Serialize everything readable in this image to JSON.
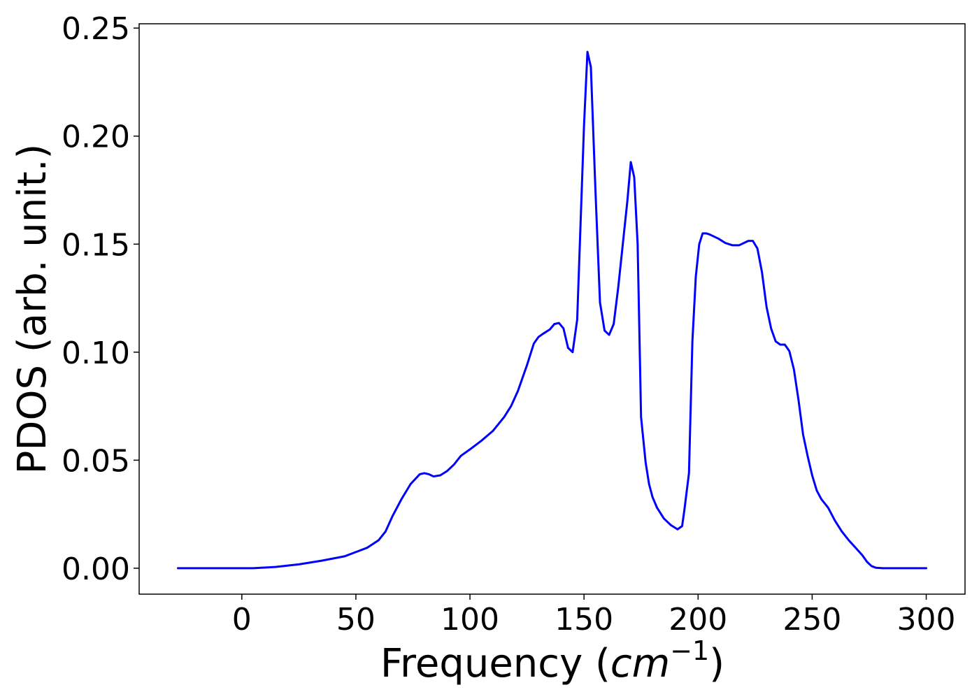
{
  "chart_data": {
    "type": "line",
    "title": "",
    "xlabel": "Frequency (",
    "xlabel_math": "cm",
    "xlabel_sup": "−1",
    "xlabel_close": ")",
    "ylabel": "PDOS (arb. unit.)",
    "xlim": [
      -45,
      317
    ],
    "ylim": [
      -0.012,
      0.252
    ],
    "xticks": [
      0,
      50,
      100,
      150,
      200,
      250,
      300
    ],
    "xtick_labels": [
      "0",
      "50",
      "100",
      "150",
      "200",
      "250",
      "300"
    ],
    "yticks": [
      0.0,
      0.05,
      0.1,
      0.15,
      0.2,
      0.25
    ],
    "ytick_labels": [
      "0.00",
      "0.05",
      "0.10",
      "0.15",
      "0.20",
      "0.25"
    ],
    "grid": false,
    "line_color": "#0000ff",
    "series": [
      {
        "x": [
          -28,
          5,
          15,
          25,
          35,
          45,
          50,
          55,
          60,
          63,
          66,
          70,
          74,
          78,
          80,
          82,
          84,
          87,
          90,
          93,
          96,
          100,
          105,
          110,
          115,
          118,
          121,
          125,
          128,
          130,
          132,
          135,
          137,
          139,
          141,
          143,
          145,
          147,
          148.5,
          150,
          151.5,
          153,
          155,
          157,
          159,
          161,
          163,
          165,
          167,
          169,
          170.5,
          172,
          173.5,
          175,
          177,
          178.5,
          180,
          182,
          185,
          188,
          191,
          193,
          194,
          196,
          197.5,
          199,
          200.5,
          202,
          203.5,
          205,
          207,
          209,
          212,
          215,
          218,
          220,
          222,
          224,
          226,
          228,
          230,
          232,
          234,
          236,
          238,
          240,
          242,
          244,
          246,
          248,
          250,
          252,
          254,
          257,
          260,
          263,
          266,
          269,
          272,
          274,
          276,
          278,
          281,
          290,
          300
        ],
        "y": [
          0.0,
          0.0,
          0.0006,
          0.0018,
          0.0035,
          0.0055,
          0.0075,
          0.0095,
          0.013,
          0.017,
          0.024,
          0.032,
          0.039,
          0.0435,
          0.044,
          0.0435,
          0.0425,
          0.043,
          0.045,
          0.048,
          0.052,
          0.055,
          0.059,
          0.0635,
          0.07,
          0.075,
          0.082,
          0.094,
          0.104,
          0.107,
          0.1085,
          0.1105,
          0.113,
          0.1135,
          0.111,
          0.102,
          0.1,
          0.115,
          0.16,
          0.205,
          0.239,
          0.232,
          0.175,
          0.123,
          0.11,
          0.108,
          0.113,
          0.13,
          0.15,
          0.17,
          0.188,
          0.181,
          0.15,
          0.07,
          0.049,
          0.039,
          0.033,
          0.028,
          0.023,
          0.02,
          0.018,
          0.0195,
          0.027,
          0.044,
          0.105,
          0.135,
          0.15,
          0.155,
          0.155,
          0.1545,
          0.1535,
          0.1525,
          0.1505,
          0.1495,
          0.1495,
          0.1505,
          0.1515,
          0.1515,
          0.148,
          0.137,
          0.121,
          0.111,
          0.105,
          0.1035,
          0.1035,
          0.1005,
          0.092,
          0.078,
          0.062,
          0.052,
          0.043,
          0.036,
          0.032,
          0.028,
          0.022,
          0.017,
          0.013,
          0.0095,
          0.006,
          0.003,
          0.001,
          0.0002,
          0.0,
          0.0,
          0.0
        ]
      }
    ]
  }
}
